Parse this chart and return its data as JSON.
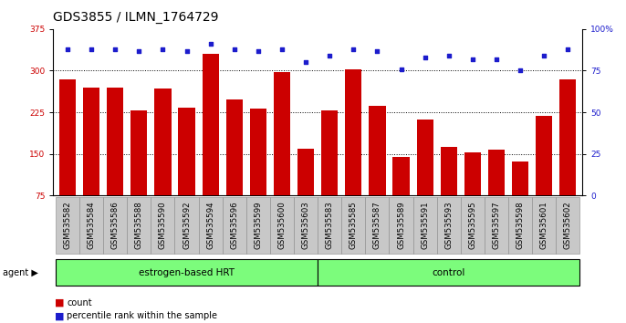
{
  "title": "GDS3855 / ILMN_1764729",
  "samples": [
    "GSM535582",
    "GSM535584",
    "GSM535586",
    "GSM535588",
    "GSM535590",
    "GSM535592",
    "GSM535594",
    "GSM535596",
    "GSM535599",
    "GSM535600",
    "GSM535603",
    "GSM535583",
    "GSM535585",
    "GSM535587",
    "GSM535589",
    "GSM535591",
    "GSM535593",
    "GSM535595",
    "GSM535597",
    "GSM535598",
    "GSM535601",
    "GSM535602"
  ],
  "counts": [
    285,
    270,
    270,
    228,
    268,
    234,
    330,
    248,
    232,
    297,
    160,
    228,
    302,
    236,
    144,
    212,
    162,
    152,
    158,
    136,
    218,
    285
  ],
  "percentiles": [
    88,
    88,
    88,
    87,
    88,
    87,
    91,
    88,
    87,
    88,
    80,
    84,
    88,
    87,
    76,
    83,
    84,
    82,
    82,
    75,
    84,
    88
  ],
  "n_hrt": 11,
  "n_control": 11,
  "group_labels": [
    "estrogen-based HRT",
    "control"
  ],
  "bar_color": "#CC0000",
  "dot_color": "#1C1CCC",
  "ylim_left": [
    75,
    375
  ],
  "ylim_right": [
    0,
    100
  ],
  "yticks_left": [
    75,
    150,
    225,
    300,
    375
  ],
  "yticks_right": [
    0,
    25,
    50,
    75,
    100
  ],
  "bg_color": "#ffffff",
  "title_fontsize": 10,
  "tick_fontsize": 6.5,
  "agent_label": "agent",
  "legend_count_label": "count",
  "legend_percentile_label": "percentile rank within the sample",
  "group_box_color": "#7CFC7C",
  "tick_box_color": "#C8C8C8"
}
